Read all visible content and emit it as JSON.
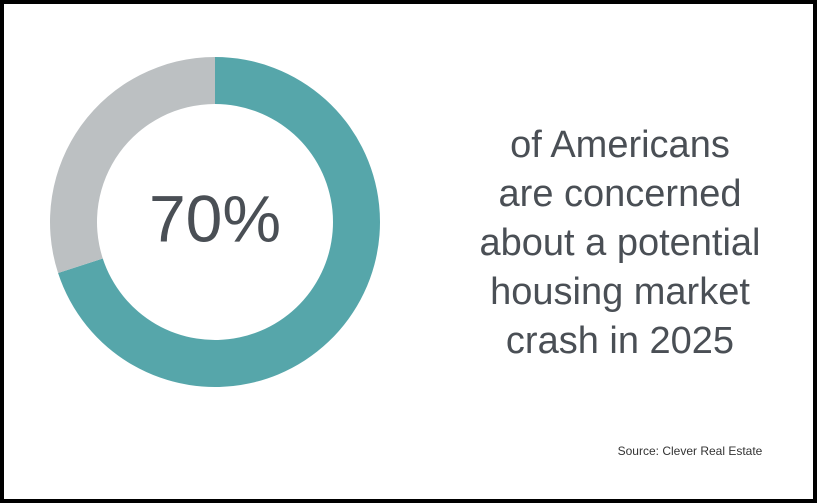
{
  "chart_data": {
    "type": "donut",
    "values": [
      70,
      30
    ],
    "value_labels": [
      "70%",
      null
    ],
    "colors": [
      "#56a6aa",
      "#bcc0c2"
    ],
    "description_lines": [
      "of Americans",
      "are concerned",
      "about a potential",
      "housing market",
      "crash in 2025"
    ],
    "source": "Source: Clever Real Estate"
  }
}
